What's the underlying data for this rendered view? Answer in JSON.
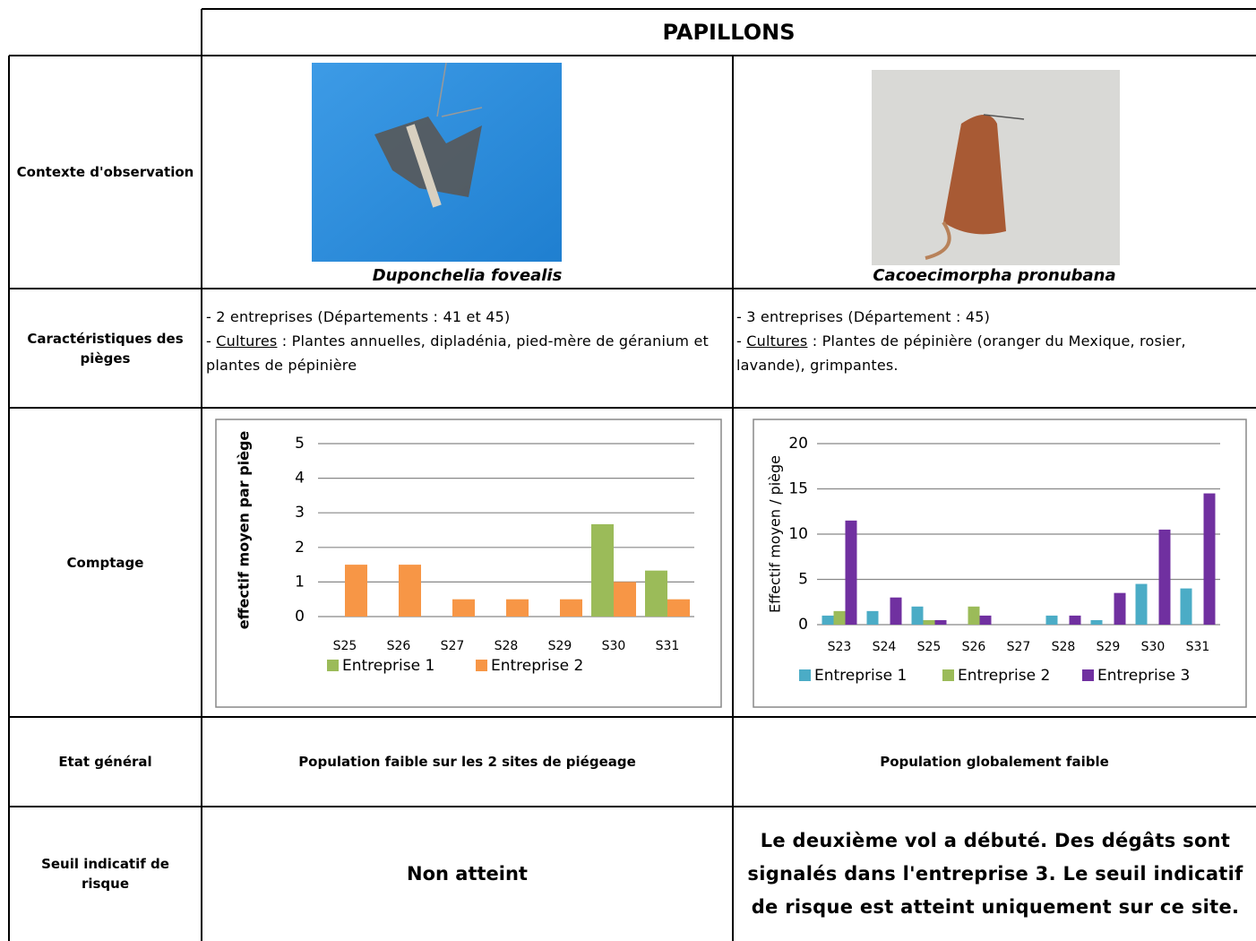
{
  "table": {
    "title": "PAPILLONS",
    "row_labels": [
      "Contexte d'observation",
      "Caractéristiques des pièges",
      "Comptage",
      "Etat général",
      "Seuil indicatif de risque"
    ],
    "species": [
      "Duponchelia fovealis",
      "Cacoecimorpha pronubana"
    ],
    "traps": [
      {
        "line1": "- 2 entreprises (Départements : 41 et 45)",
        "prefix": "- ",
        "term": "Cultures",
        "text": " : Plantes annuelles, dipladénia, pied-mère de géranium et plantes de pépinière"
      },
      {
        "line1": "- 3 entreprises (Département : 45)",
        "prefix": "- ",
        "term": "Cultures",
        "text": " : Plantes de pépinière (oranger du Mexique, rosier, lavande), grimpantes."
      }
    ],
    "state": [
      "Population faible sur les 2 sites de piégeage",
      "Population globalement faible"
    ],
    "threshold": [
      "Non atteint",
      "Le deuxième vol a débuté. Des dégâts sont signalés dans l'entreprise 3. Le seuil indicatif de risque est atteint uniquement sur ce site."
    ]
  },
  "chart_data": [
    {
      "type": "bar",
      "y_label": "effectif moyen par piège",
      "categories": [
        "S25",
        "S26",
        "S27",
        "S28",
        "S29",
        "S30",
        "S31"
      ],
      "series": [
        {
          "name": "Entreprise 1",
          "color": "#9bbb59",
          "values": [
            0,
            0,
            0,
            0,
            0,
            2.67,
            1.33
          ]
        },
        {
          "name": "Entreprise 2",
          "color": "#f79646",
          "values": [
            1.5,
            1.5,
            0.5,
            0.5,
            0.5,
            1,
            0.5
          ]
        }
      ],
      "ylim": [
        0,
        5
      ],
      "yticks": [
        0,
        1,
        2,
        3,
        4,
        5
      ],
      "grid": true
    },
    {
      "type": "bar",
      "y_label": "Effectif moyen / piège",
      "categories": [
        "S23",
        "S24",
        "S25",
        "S26",
        "S27",
        "S28",
        "S29",
        "S30",
        "S31"
      ],
      "series": [
        {
          "name": "Entreprise 1",
          "color": "#4bacc6",
          "values": [
            1,
            1.5,
            2,
            0,
            0,
            1,
            0.5,
            4.5,
            4
          ]
        },
        {
          "name": "Entreprise 2",
          "color": "#9bbb59",
          "values": [
            1.5,
            0,
            0.5,
            2,
            0,
            0,
            0,
            0,
            0
          ]
        },
        {
          "name": "Entreprise 3",
          "color": "#7030a0",
          "values": [
            11.5,
            3,
            0.5,
            1,
            0,
            1,
            3.5,
            10.5,
            14.5
          ]
        }
      ],
      "ylim": [
        0,
        20
      ],
      "yticks": [
        0,
        5,
        10,
        15,
        20
      ],
      "grid": true
    }
  ]
}
